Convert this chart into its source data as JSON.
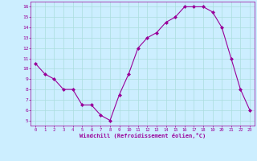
{
  "x": [
    0,
    1,
    2,
    3,
    4,
    5,
    6,
    7,
    8,
    9,
    10,
    11,
    12,
    13,
    14,
    15,
    16,
    17,
    18,
    19,
    20,
    21,
    22,
    23
  ],
  "y": [
    10.5,
    9.5,
    9.0,
    8.0,
    8.0,
    6.5,
    6.5,
    5.5,
    5.0,
    7.5,
    9.5,
    12.0,
    13.0,
    13.5,
    14.5,
    15.0,
    16.0,
    16.0,
    16.0,
    15.5,
    14.0,
    11.0,
    8.0,
    6.0
  ],
  "line_color": "#990099",
  "marker": "D",
  "marker_size": 2,
  "bg_color": "#cceeff",
  "grid_color": "#aadddd",
  "xlabel": "Windchill (Refroidissement éolien,°C)",
  "xlabel_color": "#990099",
  "yticks": [
    5,
    6,
    7,
    8,
    9,
    10,
    11,
    12,
    13,
    14,
    15,
    16
  ],
  "xticks": [
    0,
    1,
    2,
    3,
    4,
    5,
    6,
    7,
    8,
    9,
    10,
    11,
    12,
    13,
    14,
    15,
    16,
    17,
    18,
    19,
    20,
    21,
    22,
    23
  ],
  "ylim": [
    4.5,
    16.5
  ],
  "xlim": [
    -0.5,
    23.5
  ]
}
